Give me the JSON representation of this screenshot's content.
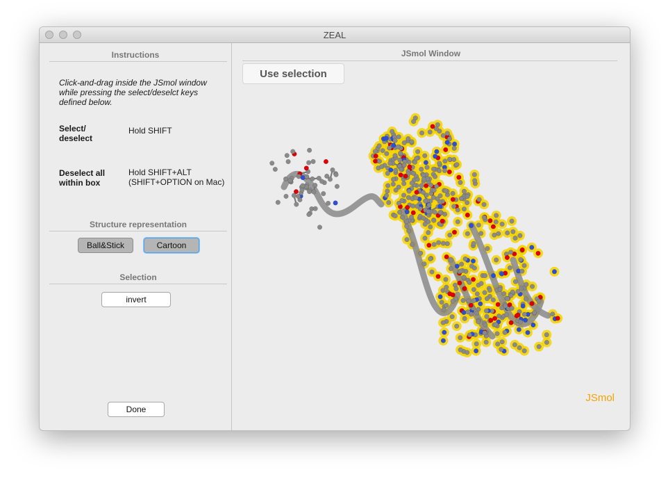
{
  "window": {
    "title": "ZEAL"
  },
  "instructions": {
    "title": "Instructions",
    "intro_lines": [
      "Click-and-drag inside the JSmol window",
      "while pressing the select/deselct keys",
      "defined below."
    ],
    "rows": [
      {
        "key_lines": [
          "Select/",
          "deselect"
        ],
        "value_lines": [
          "Hold SHIFT"
        ]
      },
      {
        "key_lines": [
          "Deselect all",
          "within box"
        ],
        "value_lines": [
          "Hold SHIFT+ALT",
          "(SHIFT+OPTION on Mac)"
        ]
      }
    ]
  },
  "representation": {
    "title": "Structure representation",
    "ball_stick": "Ball&Stick",
    "cartoon": "Cartoon"
  },
  "selection": {
    "title": "Selection",
    "invert": "invert"
  },
  "done": "Done",
  "jsmol": {
    "title": "JSmol Window",
    "use_selection": "Use selection",
    "brand": "JSmol"
  },
  "colors": {
    "highlight": "#f5d400",
    "carbon": "#8a8a8a",
    "oxygen": "#e00000",
    "nitrogen": "#2d4fd6",
    "brand": "#f5a300"
  }
}
